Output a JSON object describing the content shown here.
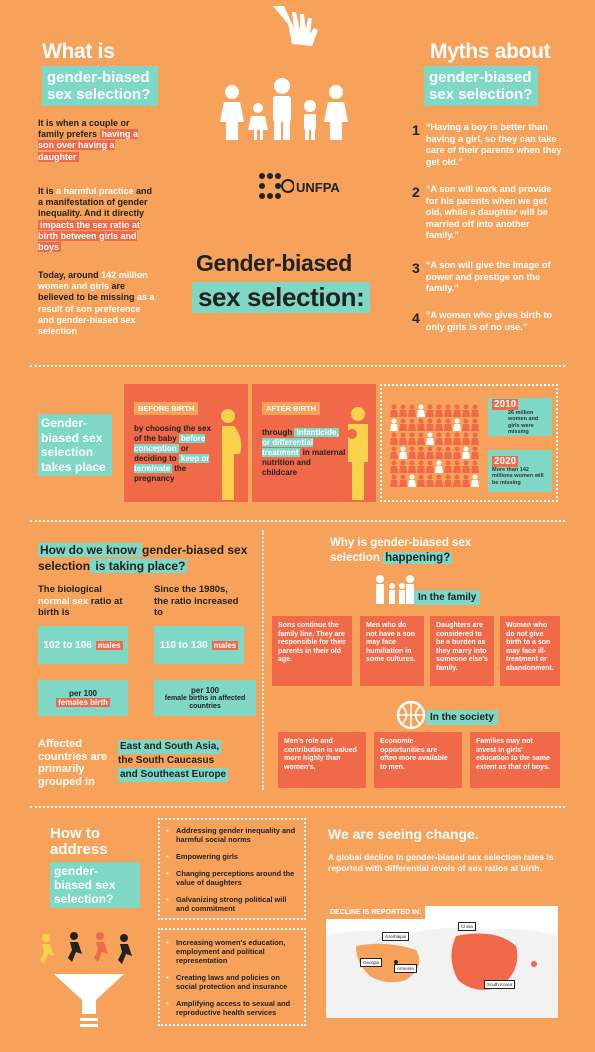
{
  "header": {
    "hand_icon": "hand-icon",
    "family_icon": "family-icon",
    "logo_text": "UNFPA",
    "logo_icon": "unfpa-logo-icon"
  },
  "what_is": {
    "title": "What is",
    "subtitle": "gender-biased sex selection?",
    "p1_a": "It is when a couple or family prefers ",
    "p1_hl": "having a son over having a daughter",
    "p2_a": "It is ",
    "p2_hl1": "a harmful practice",
    "p2_b": " and a manifestation of gender inequality.",
    "p2_c": "And it directly ",
    "p2_hl2": "impacts the sex ratio at birth between girls and boys",
    "p3_a": "Today, around ",
    "p3_hl1": "142 million women and girls",
    "p3_b": " are believed to be missing ",
    "p3_hl2": "as a result of son preference and gender-biased sex selection"
  },
  "main_title": {
    "line1": "Gender-biased",
    "line2": "sex selection:"
  },
  "myths": {
    "title": "Myths about",
    "subtitle": "gender-biased sex selection?",
    "items": [
      {
        "n": "1",
        "text": "“Having a boy is better than having a girl, so they can take care of their parents when they get old.”"
      },
      {
        "n": "2",
        "text": "“A son will work and provide for his parents when we get old, while a daughter will be married off into another family.”"
      },
      {
        "n": "3",
        "text": "“A son will give the image of power and prestige on the family.”"
      },
      {
        "n": "4",
        "text": "“A woman who gives birth to only girls is of no use.”"
      }
    ]
  },
  "takes_place": {
    "label": "Gender-biased sex selection takes place",
    "before_tag": "BEFORE BIRTH",
    "before_text_a": "by choosing the sex of the baby ",
    "before_hl1": "before conception",
    "before_text_b": " or deciding to ",
    "before_hl2": "keep or terminate",
    "before_text_c": " the pregnancy",
    "after_tag": "AFTER BIRTH",
    "after_text_a": "through ",
    "after_hl": "infanticide, or differential treatment",
    "after_text_b": " in maternal nutrition and childcare",
    "stat1_year": "2010",
    "stat1_text": "26 million women and girls were missing",
    "stat2_year": "2020",
    "stat2_text": "More than 142 millions women will be missing"
  },
  "how_know": {
    "title_a": "How do we know ",
    "title_b": "gender-biased sex selection",
    "title_c": " is taking place?",
    "col1_head_a": "The biological ",
    "col1_head_hl": "normal sex",
    "col1_head_b": " ratio at birth is",
    "col2_head": "Since the 1980s, the ratio increased to",
    "males1_range": "102 to 106",
    "males1_label": "males",
    "per1": "per 100",
    "females1_label": "females birth",
    "males2_range": "110 to 130",
    "males2_label": "males",
    "per2": "per 100",
    "females2_label": "female births in affected countries",
    "affected_label": "Affected countries are primarily grouped in",
    "regions": [
      "East and South Asia,",
      "the South Caucasus",
      "and Southeast Europe"
    ]
  },
  "why": {
    "title_a": "Why is gender-biased sex selection ",
    "title_b": "happening?",
    "family_label": "In the family",
    "family_cells": [
      "Sons continue the family line. They are responsible for their parents in their old age.",
      "Men who do not have a son may face humiliation in some cultures.",
      "Daughters are considered to be a burden as they marry into someone else's family.",
      "Women who do not give birth to a son may face ill-treatment or abandonment."
    ],
    "society_label": "In the society",
    "society_cells": [
      "Men's role and contribution is valued more highly than women's.",
      "Economic opportunities are often more available to men.",
      "Families may not invest in girls' education to the same extent as that of boys."
    ]
  },
  "address": {
    "title": "How to address",
    "subtitle": "gender-biased sex selection?",
    "list1": [
      "Addressing gender inequality and harmful social norms",
      "Empowering girls",
      "Changing perceptions around the value of daughters",
      "Galvanizing strong political will and commitment"
    ],
    "list2": [
      "Increasing women's education, employment and political representation",
      "Creating laws and policies on social protection and insurance",
      "Amplifying access to sexual and reproductive health services"
    ]
  },
  "change": {
    "title": "We are seeing change.",
    "text": "A global decline in gender-biased sex selection rates is reported with differential levels of sex ratios at birth.",
    "map_label": "DECLINE IS REPORTED IN:",
    "map_tags": [
      "China",
      "Azerbaijan",
      "Georgia",
      "Armenia",
      "South Korea"
    ]
  },
  "colors": {
    "orange": "#f7a25a",
    "red": "#f06a4a",
    "teal": "#7fd8c6"
  }
}
